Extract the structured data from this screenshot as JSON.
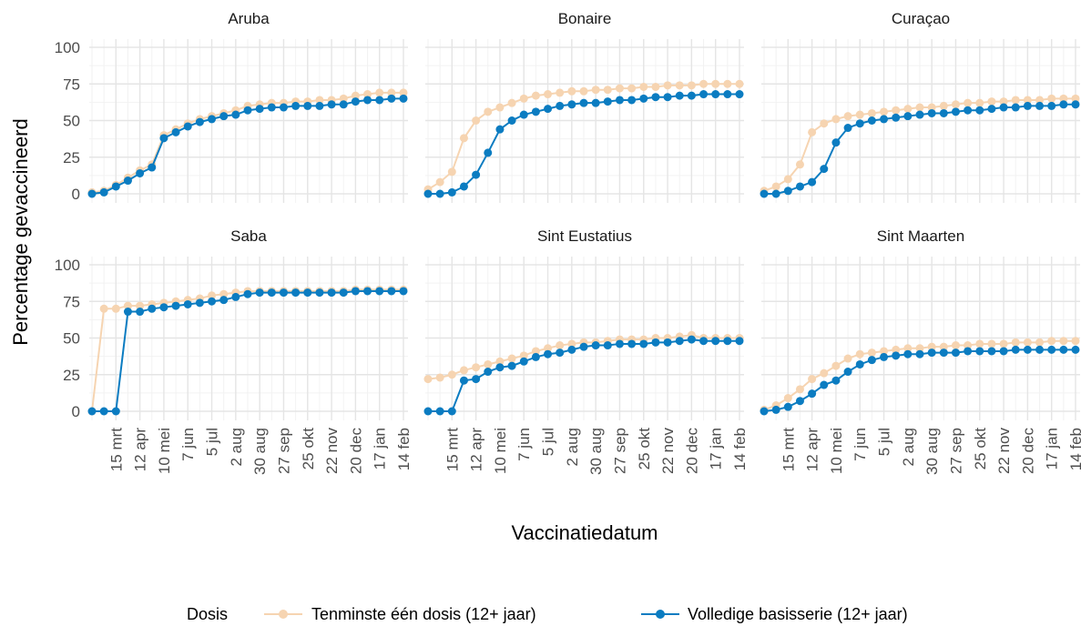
{
  "y_label": "Percentage gevaccineerd",
  "x_label": "Vaccinatiedatum",
  "legend_title": "Dosis",
  "chart_data": [
    {
      "type": "line",
      "title": "Aruba",
      "ylim": [
        0,
        100
      ],
      "yticks": [
        0,
        25,
        50,
        75,
        100
      ],
      "grid": true,
      "categories": [
        null,
        null,
        "15 mrt",
        null,
        "12 apr",
        null,
        "10 mei",
        null,
        "7 jun",
        null,
        "5 jul",
        null,
        "2 aug",
        null,
        "30 aug",
        null,
        "27 sep",
        null,
        "25 okt",
        null,
        "22 nov",
        null,
        "20 dec",
        null,
        "17 jan",
        null,
        "14 feb"
      ],
      "series": [
        {
          "name": "Tenminste één dosis (12+ jaar)",
          "color": "#f6d4b1",
          "values": [
            1,
            2,
            6,
            11,
            16,
            20,
            40,
            44,
            48,
            51,
            53,
            55,
            57,
            60,
            61,
            62,
            62,
            63,
            63,
            64,
            64,
            65,
            67,
            68,
            69,
            69,
            69
          ]
        },
        {
          "name": "Volledige basisserie (12+ jaar)",
          "color": "#0b7cc1",
          "values": [
            0,
            1,
            5,
            9,
            14,
            18,
            38,
            42,
            46,
            49,
            51,
            53,
            54,
            57,
            58,
            59,
            59,
            60,
            60,
            60,
            61,
            61,
            63,
            64,
            64,
            65,
            65
          ]
        }
      ]
    },
    {
      "type": "line",
      "title": "Bonaire",
      "ylim": [
        0,
        100
      ],
      "yticks": [
        0,
        25,
        50,
        75,
        100
      ],
      "grid": true,
      "categories": [
        null,
        null,
        "15 mrt",
        null,
        "12 apr",
        null,
        "10 mei",
        null,
        "7 jun",
        null,
        "5 jul",
        null,
        "2 aug",
        null,
        "30 aug",
        null,
        "27 sep",
        null,
        "25 okt",
        null,
        "22 nov",
        null,
        "20 dec",
        null,
        "17 jan",
        null,
        "14 feb"
      ],
      "series": [
        {
          "name": "Tenminste één dosis (12+ jaar)",
          "color": "#f6d4b1",
          "values": [
            3,
            8,
            15,
            38,
            50,
            56,
            59,
            62,
            65,
            67,
            68,
            69,
            70,
            70,
            71,
            71,
            72,
            72,
            73,
            73,
            74,
            74,
            74,
            75,
            75,
            75,
            75
          ]
        },
        {
          "name": "Volledige basisserie (12+ jaar)",
          "color": "#0b7cc1",
          "values": [
            0,
            0,
            1,
            5,
            13,
            28,
            44,
            50,
            54,
            56,
            58,
            60,
            61,
            62,
            62,
            63,
            64,
            64,
            65,
            66,
            66,
            67,
            67,
            68,
            68,
            68,
            68
          ]
        }
      ]
    },
    {
      "type": "line",
      "title": "Curaçao",
      "ylim": [
        0,
        100
      ],
      "yticks": [
        0,
        25,
        50,
        75,
        100
      ],
      "grid": true,
      "categories": [
        null,
        null,
        "15 mrt",
        null,
        "12 apr",
        null,
        "10 mei",
        null,
        "7 jun",
        null,
        "5 jul",
        null,
        "2 aug",
        null,
        "30 aug",
        null,
        "27 sep",
        null,
        "25 okt",
        null,
        "22 nov",
        null,
        "20 dec",
        null,
        "17 jan",
        null,
        "14 feb"
      ],
      "series": [
        {
          "name": "Tenminste één dosis (12+ jaar)",
          "color": "#f6d4b1",
          "values": [
            2,
            5,
            10,
            20,
            42,
            48,
            51,
            53,
            54,
            55,
            56,
            57,
            58,
            59,
            59,
            60,
            61,
            62,
            62,
            63,
            63,
            64,
            64,
            64,
            65,
            65,
            65
          ]
        },
        {
          "name": "Volledige basisserie (12+ jaar)",
          "color": "#0b7cc1",
          "values": [
            0,
            0,
            2,
            5,
            8,
            17,
            35,
            45,
            48,
            50,
            51,
            52,
            53,
            54,
            55,
            55,
            56,
            57,
            57,
            58,
            59,
            59,
            60,
            60,
            60,
            61,
            61
          ]
        }
      ]
    },
    {
      "type": "line",
      "title": "Saba",
      "ylim": [
        0,
        100
      ],
      "yticks": [
        0,
        25,
        50,
        75,
        100
      ],
      "grid": true,
      "categories": [
        null,
        null,
        "15 mrt",
        null,
        "12 apr",
        null,
        "10 mei",
        null,
        "7 jun",
        null,
        "5 jul",
        null,
        "2 aug",
        null,
        "30 aug",
        null,
        "27 sep",
        null,
        "25 okt",
        null,
        "22 nov",
        null,
        "20 dec",
        null,
        "17 jan",
        null,
        "14 feb"
      ],
      "series": [
        {
          "name": "Tenminste één dosis (12+ jaar)",
          "color": "#f6d4b1",
          "values": [
            0,
            70,
            70,
            72,
            72,
            73,
            74,
            75,
            76,
            77,
            79,
            80,
            81,
            82,
            82,
            82,
            82,
            82,
            82,
            82,
            82,
            82,
            83,
            83,
            83,
            83,
            83
          ]
        },
        {
          "name": "Volledige basisserie (12+ jaar)",
          "color": "#0b7cc1",
          "values": [
            0,
            0,
            0,
            68,
            68,
            70,
            71,
            72,
            73,
            74,
            75,
            76,
            78,
            80,
            81,
            81,
            81,
            81,
            81,
            81,
            81,
            81,
            82,
            82,
            82,
            82,
            82
          ]
        }
      ]
    },
    {
      "type": "line",
      "title": "Sint Eustatius",
      "ylim": [
        0,
        100
      ],
      "yticks": [
        0,
        25,
        50,
        75,
        100
      ],
      "grid": true,
      "categories": [
        null,
        null,
        "15 mrt",
        null,
        "12 apr",
        null,
        "10 mei",
        null,
        "7 jun",
        null,
        "5 jul",
        null,
        "2 aug",
        null,
        "30 aug",
        null,
        "27 sep",
        null,
        "25 okt",
        null,
        "22 nov",
        null,
        "20 dec",
        null,
        "17 jan",
        null,
        "14 feb"
      ],
      "series": [
        {
          "name": "Tenminste één dosis (12+ jaar)",
          "color": "#f6d4b1",
          "values": [
            22,
            23,
            25,
            28,
            30,
            32,
            34,
            36,
            38,
            41,
            43,
            45,
            46,
            47,
            47,
            48,
            49,
            49,
            49,
            50,
            50,
            51,
            52,
            50,
            50,
            50,
            50
          ]
        },
        {
          "name": "Volledige basisserie (12+ jaar)",
          "color": "#0b7cc1",
          "values": [
            0,
            0,
            0,
            21,
            22,
            27,
            30,
            31,
            34,
            37,
            39,
            40,
            42,
            44,
            45,
            45,
            46,
            46,
            46,
            47,
            47,
            48,
            49,
            48,
            48,
            48,
            48
          ]
        }
      ]
    },
    {
      "type": "line",
      "title": "Sint Maarten",
      "ylim": [
        0,
        100
      ],
      "yticks": [
        0,
        25,
        50,
        75,
        100
      ],
      "grid": true,
      "categories": [
        null,
        null,
        "15 mrt",
        null,
        "12 apr",
        null,
        "10 mei",
        null,
        "7 jun",
        null,
        "5 jul",
        null,
        "2 aug",
        null,
        "30 aug",
        null,
        "27 sep",
        null,
        "25 okt",
        null,
        "22 nov",
        null,
        "20 dec",
        null,
        "17 jan",
        null,
        "14 feb"
      ],
      "series": [
        {
          "name": "Tenminste één dosis (12+ jaar)",
          "color": "#f6d4b1",
          "values": [
            1,
            4,
            9,
            15,
            22,
            26,
            31,
            36,
            39,
            40,
            41,
            42,
            43,
            43,
            44,
            44,
            45,
            45,
            46,
            46,
            46,
            47,
            47,
            47,
            48,
            48,
            48
          ]
        },
        {
          "name": "Volledige basisserie (12+ jaar)",
          "color": "#0b7cc1",
          "values": [
            0,
            1,
            3,
            7,
            12,
            18,
            21,
            27,
            32,
            35,
            37,
            38,
            39,
            39,
            40,
            40,
            40,
            41,
            41,
            41,
            41,
            42,
            42,
            42,
            42,
            42,
            42
          ]
        }
      ]
    }
  ]
}
